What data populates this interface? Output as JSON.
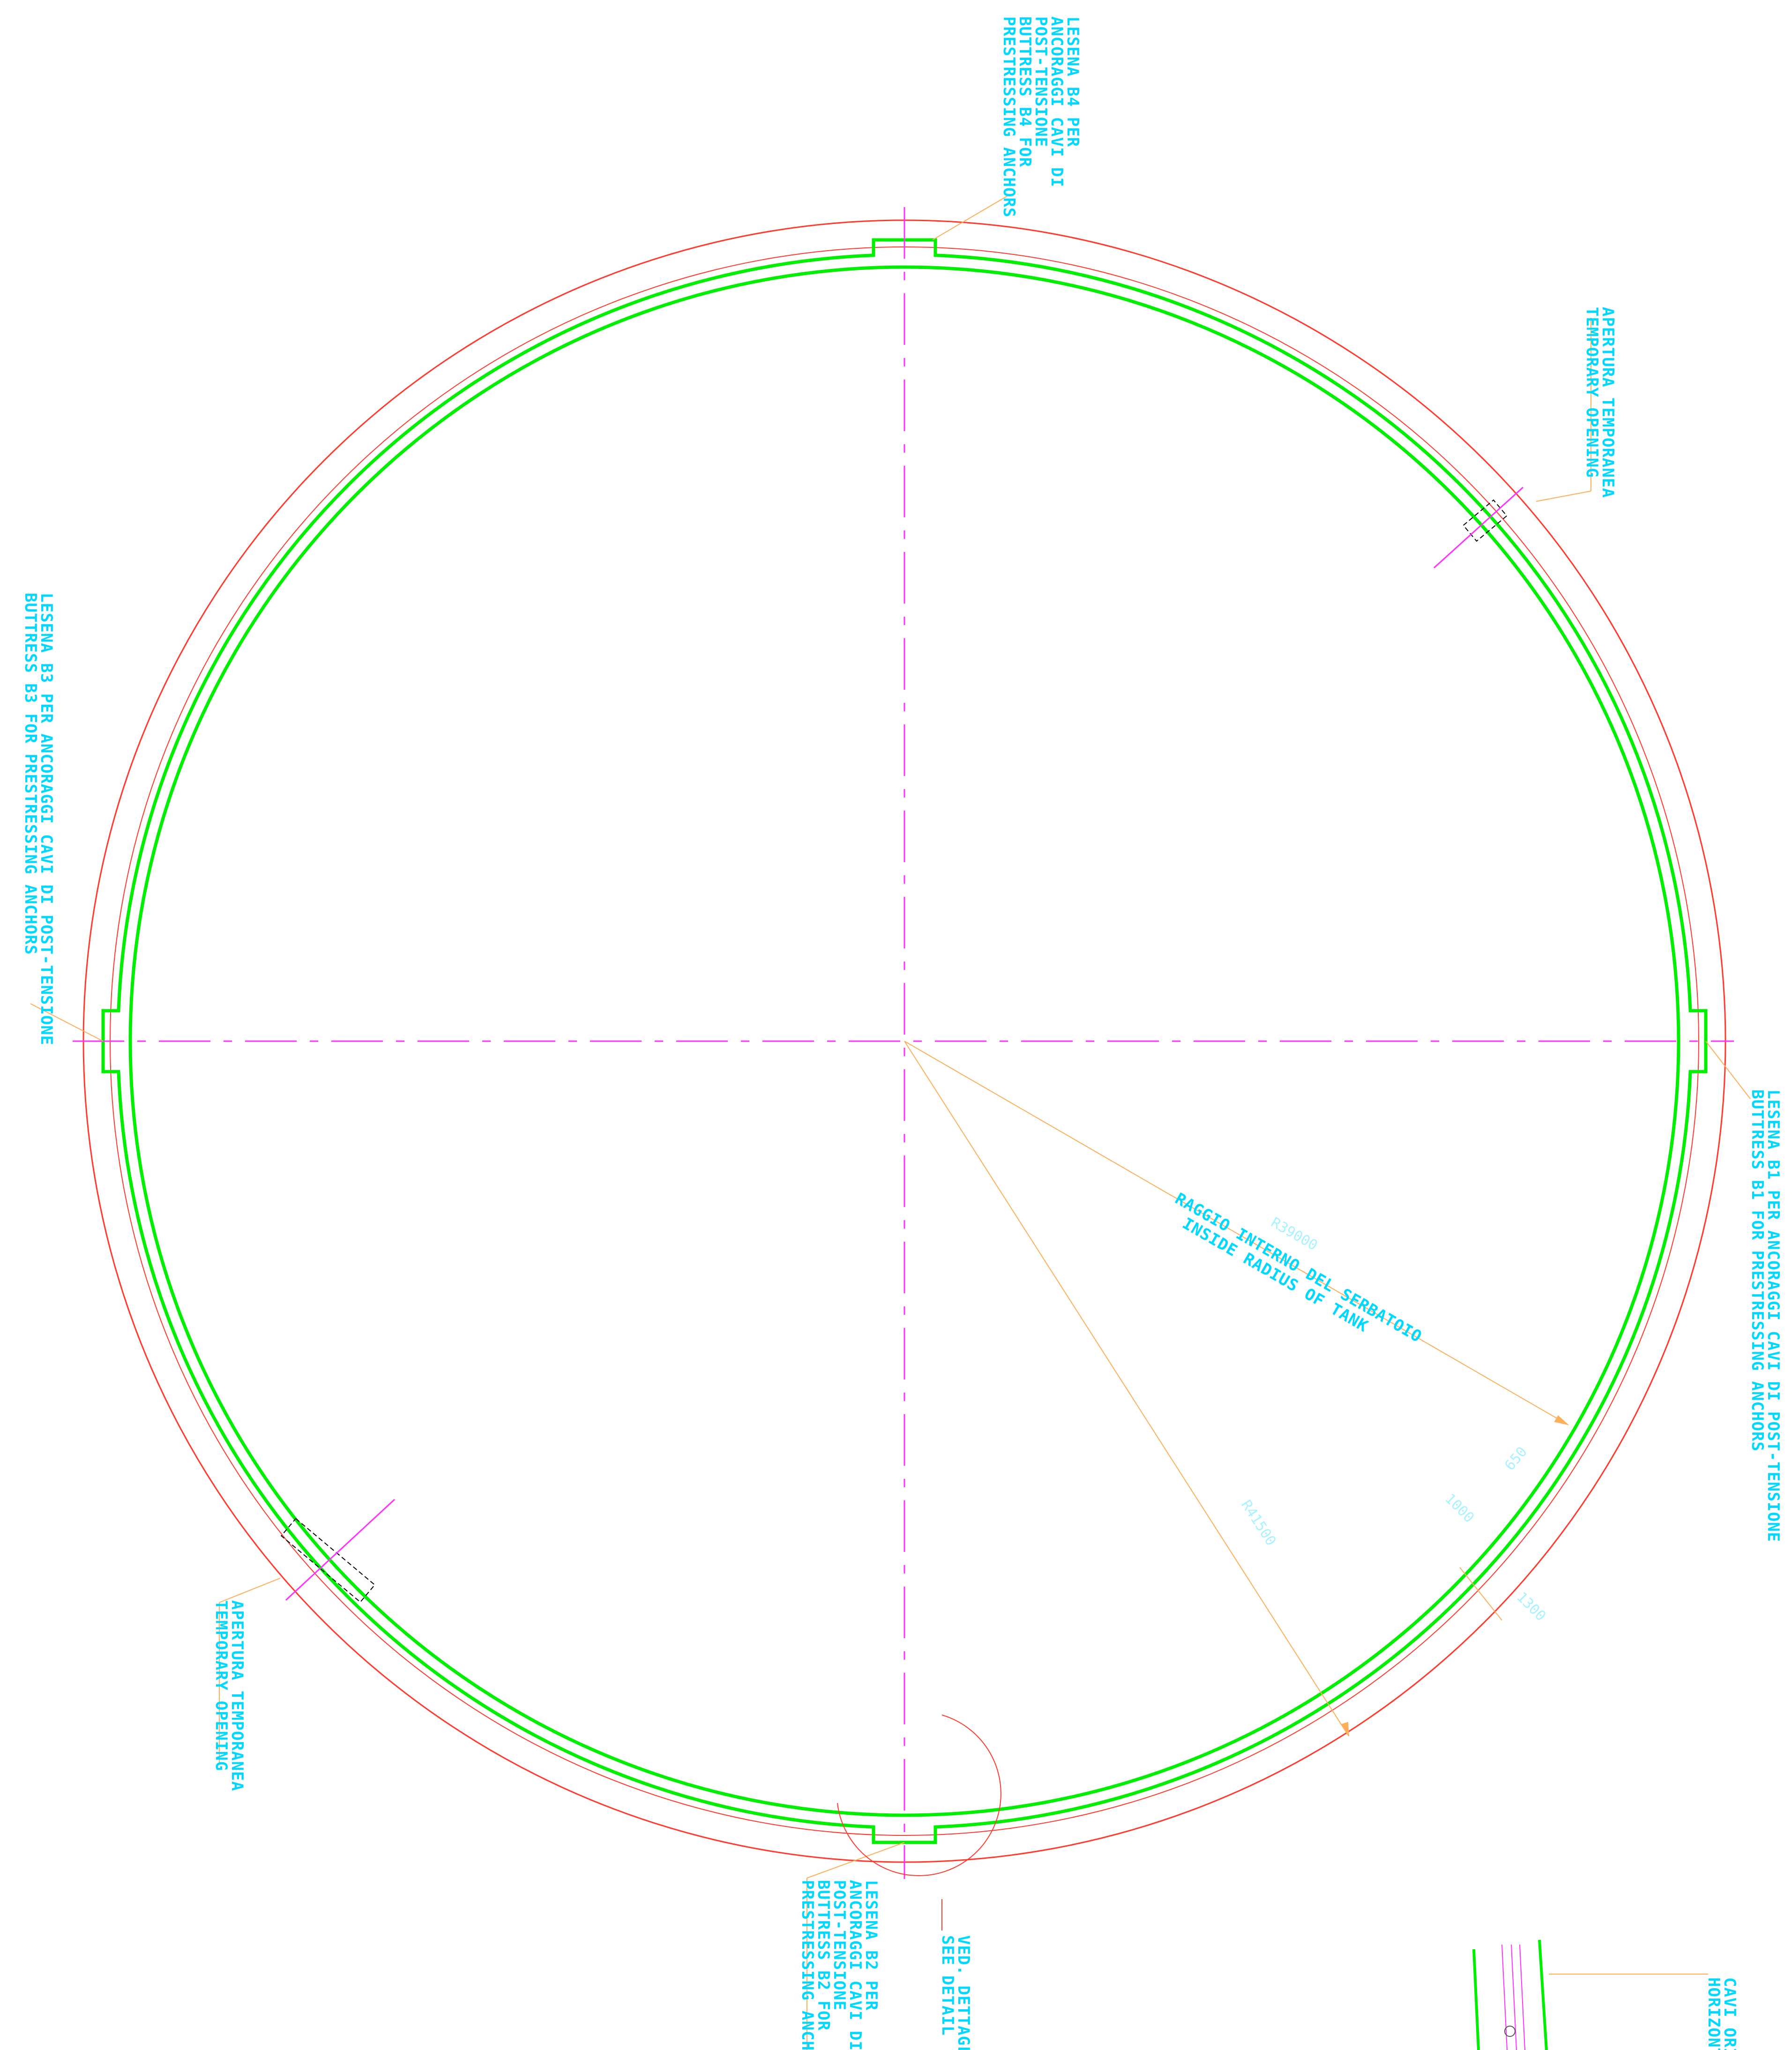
{
  "colors": {
    "outer_circle": "#ff3b30",
    "tank_wall": "#00ee00",
    "centerline": "#ff33ff",
    "leader": "#ffae5a",
    "label_text": "#00d8ff",
    "dimension_text": "#a8f3ff",
    "detail_marker": "#ff3b30"
  },
  "labels": {
    "buttress_b4": [
      "LESENA B4 PER",
      "ANCORAGGI CAVI DI",
      "POST-TENSIONE",
      "BUTTRESS B4 FOR",
      "PRESTRESSING ANCHORS"
    ],
    "temp_opening_ne": [
      "APERTURA TEMPORANEA",
      "TEMPORARY OPENING"
    ],
    "buttress_b3": [
      "LESENA B3 PER ANCORAGGI CAVI DI POST-TENSIONE",
      "BUTTRESS B3 FOR PRESTRESSING ANCHORS"
    ],
    "buttress_b1": [
      "LESENA B1 PER ANCORAGGI CAVI DI POST-TENSIONE",
      "BUTTRESS B1 FOR PRESTRESSING ANCHORS"
    ],
    "temp_opening_sw": [
      "APERTURA TEMPORANEA",
      "TEMPORARY OPENING"
    ],
    "buttress_b2": [
      "LESENA B2 PER",
      "ANCORAGGI CAVI DI",
      "POST-TENSIONE",
      "BUTTRESS B2 FOR",
      "PRESTRESSING ANCHORS"
    ],
    "see_detail": [
      "VED. DETTAGLIO",
      "SEE DETAIL"
    ],
    "horizontal_cables": [
      "CAVI ORIZ",
      "HORIZONT"
    ],
    "inside_radius": [
      "RAGGIO INTERNO DEL SERBATOIO",
      "INSIDE RADIUS OF TANK"
    ]
  },
  "dimensions": {
    "inner_radius": "R39000",
    "outer_radius": "R41500",
    "d650": "650",
    "d1000": "1000",
    "d1300": "1300"
  }
}
